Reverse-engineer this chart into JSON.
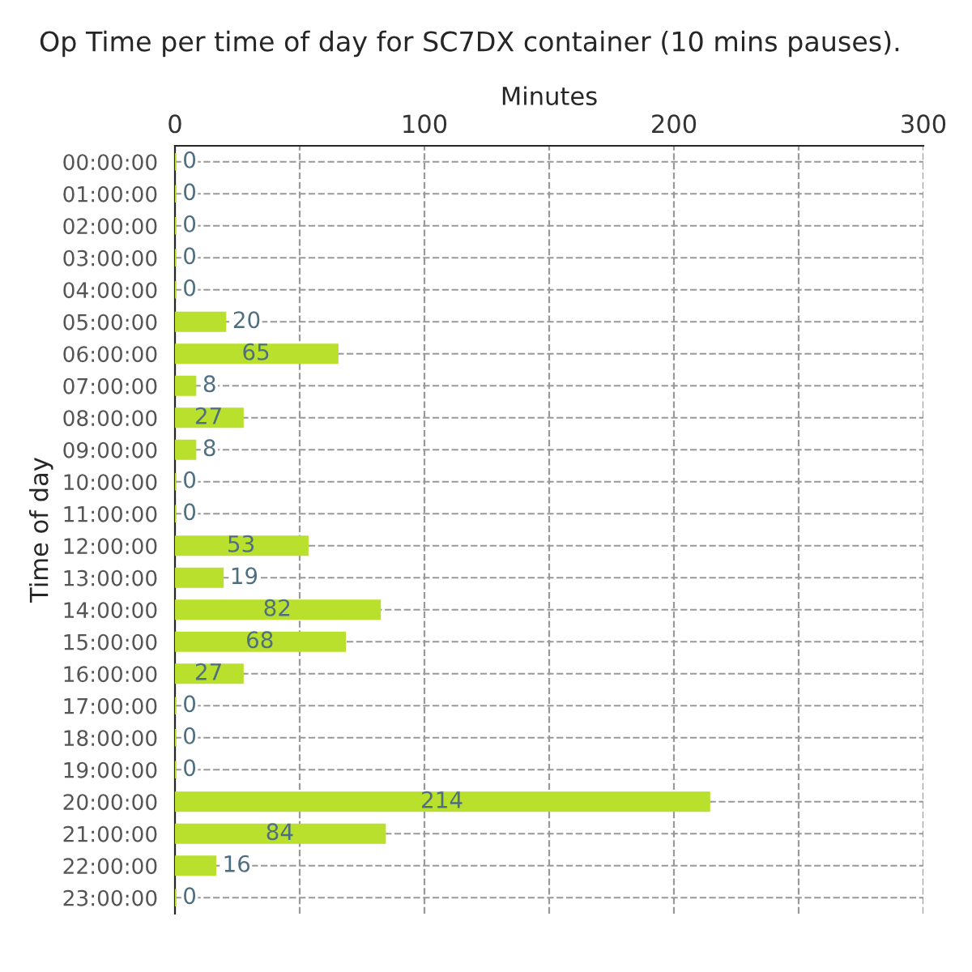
{
  "chart_data": {
    "type": "bar",
    "orientation": "horizontal",
    "title": "Op Time per time of day for SC7DX container (10 mins pauses).",
    "xlabel": "Minutes",
    "ylabel": "Time of day",
    "categories": [
      "00:00:00",
      "01:00:00",
      "02:00:00",
      "03:00:00",
      "04:00:00",
      "05:00:00",
      "06:00:00",
      "07:00:00",
      "08:00:00",
      "09:00:00",
      "10:00:00",
      "11:00:00",
      "12:00:00",
      "13:00:00",
      "14:00:00",
      "15:00:00",
      "16:00:00",
      "17:00:00",
      "18:00:00",
      "19:00:00",
      "20:00:00",
      "21:00:00",
      "22:00:00",
      "23:00:00"
    ],
    "values": [
      0,
      0,
      0,
      0,
      0,
      20,
      65,
      8,
      27,
      8,
      0,
      0,
      53,
      19,
      82,
      68,
      27,
      0,
      0,
      0,
      214,
      84,
      16,
      0
    ],
    "color": "#b8e02c",
    "xlim": [
      0,
      300
    ],
    "xticks": [
      0,
      {
        "value": 50,
        "label": null
      },
      100,
      {
        "value": 150,
        "label": null
      },
      200,
      {
        "value": 250,
        "label": null
      },
      300
    ],
    "grid": true,
    "data_labels": true
  }
}
